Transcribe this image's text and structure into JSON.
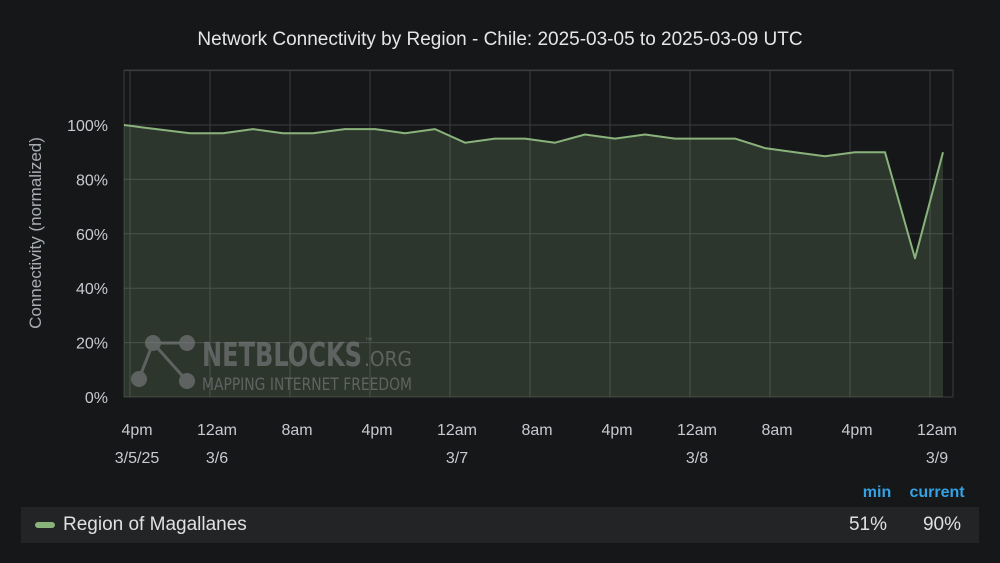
{
  "chart_data": {
    "type": "area",
    "title": "Network Connectivity by Region - Chile: 2025-03-05 to 2025-03-09 UTC",
    "ylabel": "Connectivity (normalized)",
    "xlabel": "",
    "ylim": [
      0,
      100
    ],
    "y_ticks": [
      {
        "value": 0,
        "label": "0%"
      },
      {
        "value": 20,
        "label": "20%"
      },
      {
        "value": 40,
        "label": "40%"
      },
      {
        "value": 60,
        "label": "60%"
      },
      {
        "value": 80,
        "label": "80%"
      },
      {
        "value": 100,
        "label": "100%"
      }
    ],
    "x_range_hours": [
      -1.25,
      61.25
    ],
    "x_ticks": [
      {
        "hour": 0,
        "label": "4pm",
        "sub": "3/5/25"
      },
      {
        "hour": 8,
        "label": "12am",
        "sub": "3/6"
      },
      {
        "hour": 16,
        "label": "8am",
        "sub": ""
      },
      {
        "hour": 24,
        "label": "4pm",
        "sub": ""
      },
      {
        "hour": 32,
        "label": "12am",
        "sub": "3/7"
      },
      {
        "hour": 40,
        "label": "8am",
        "sub": ""
      },
      {
        "hour": 48,
        "label": "4pm",
        "sub": ""
      },
      {
        "hour": 56,
        "label": "12am",
        "sub": "3/8"
      },
      {
        "hour": 64,
        "label": "8am",
        "sub": ""
      },
      {
        "hour": 72,
        "label": "4pm",
        "sub": ""
      },
      {
        "hour": 80,
        "label": "12am",
        "sub": "3/9"
      }
    ],
    "grid": true,
    "series": [
      {
        "name": "Region of Magallanes",
        "color": "#8ab37c",
        "points": [
          {
            "hour": -0.8,
            "value": 100
          },
          {
            "hour": 1.5,
            "value": 99
          },
          {
            "hour": 6.0,
            "value": 97
          },
          {
            "hour": 9.3,
            "value": 97
          },
          {
            "hour": 12.3,
            "value": 98.5
          },
          {
            "hour": 15.3,
            "value": 97
          },
          {
            "hour": 18.3,
            "value": 97
          },
          {
            "hour": 21.5,
            "value": 98.5
          },
          {
            "hour": 24.5,
            "value": 98.5
          },
          {
            "hour": 27.5,
            "value": 97
          },
          {
            "hour": 30.5,
            "value": 98.5
          },
          {
            "hour": 33.5,
            "value": 93.5
          },
          {
            "hour": 36.5,
            "value": 95
          },
          {
            "hour": 39.5,
            "value": 95
          },
          {
            "hour": 42.5,
            "value": 93.5
          },
          {
            "hour": 45.5,
            "value": 96.5
          },
          {
            "hour": 48.5,
            "value": 95
          },
          {
            "hour": 51.5,
            "value": 96.5
          },
          {
            "hour": 54.5,
            "value": 95
          },
          {
            "hour": 57.5,
            "value": 95
          },
          {
            "hour": 60.5,
            "value": 95
          },
          {
            "hour": 63.5,
            "value": 91.5
          },
          {
            "hour": 66.5,
            "value": 90
          },
          {
            "hour": 69.5,
            "value": 88.5
          },
          {
            "hour": 72.5,
            "value": 90
          },
          {
            "hour": 75.5,
            "value": 90
          },
          {
            "hour": 78.5,
            "value": 51
          },
          {
            "hour": 81.3,
            "value": 90
          }
        ],
        "min_label": "51%",
        "current_label": "90%"
      }
    ],
    "legend_position": "bottom"
  },
  "legend": {
    "min_header": "min",
    "current_header": "current"
  },
  "watermark": {
    "brand": "NETBLOCKS",
    "tm": "™",
    "suffix": ".ORG",
    "tagline": "MAPPING INTERNET FREEDOM"
  }
}
